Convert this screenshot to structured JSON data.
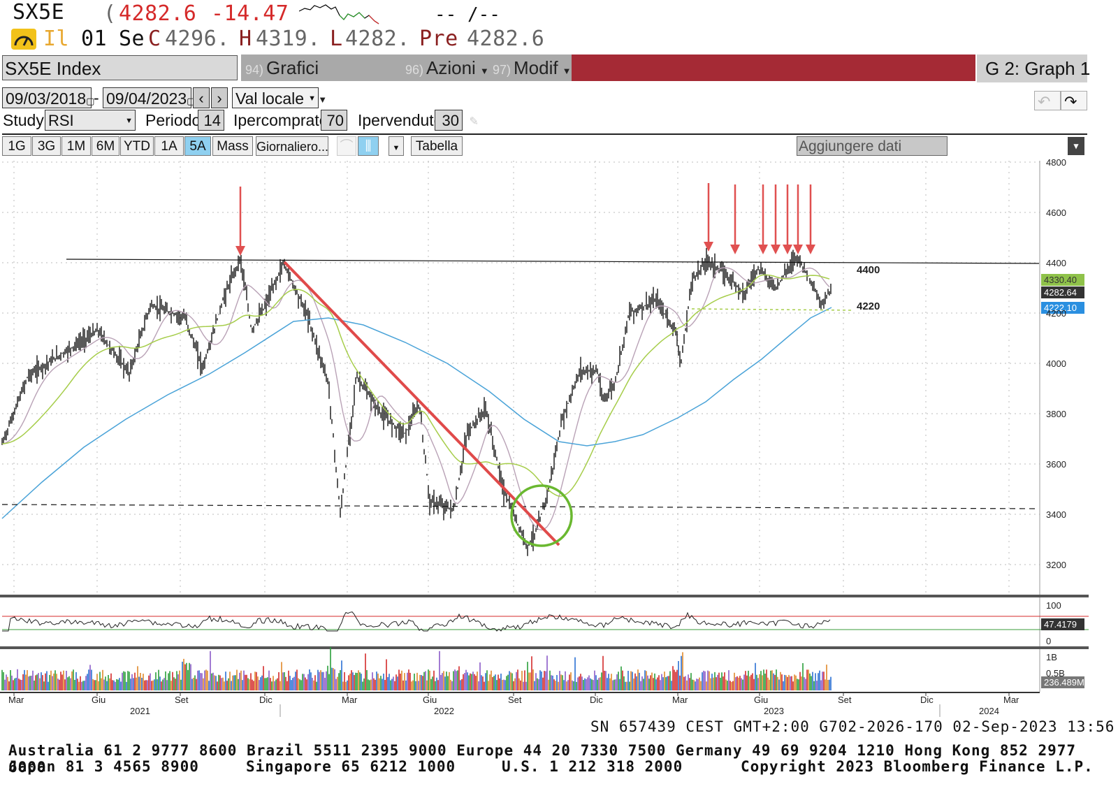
{
  "header": {
    "ticker": "SX5E",
    "last_paren": "(",
    "last_price": "4282.6",
    "change": "-14.47",
    "time_placeholder": "-- /--",
    "row2": {
      "indicator": "Il",
      "date_day": "01",
      "date_mon": "Se",
      "open_label": "C",
      "open_value": "4296.",
      "high_label": "H",
      "high_value": "4319.",
      "low_label": "L",
      "low_value": "4282.",
      "prev_label": "Pre",
      "prev_value": "4282.6"
    }
  },
  "toolbar": {
    "security": "SX5E Index",
    "suggested": {
      "num": "94)",
      "label": "Grafici suggeriti"
    },
    "actions": {
      "num": "96)",
      "label": "Azioni"
    },
    "modify": {
      "num": "97)",
      "label": "Modif"
    },
    "graph": "G 2: Graph 1"
  },
  "controls": {
    "start_date": "09/03/2018",
    "date_sep": "-",
    "end_date": "09/04/2023",
    "currency": "Val locale",
    "study_label": "Study",
    "study_value": "RSI",
    "period_label": "Periodo",
    "period_value": "14",
    "overbought_label": "Ipercomprato",
    "overbought_value": "70",
    "oversold_label": "Ipervenduto",
    "oversold_value": "30",
    "ranges": [
      "1G",
      "3G",
      "1M",
      "6M",
      "YTD",
      "1A",
      "5A",
      "Mass"
    ],
    "active_range": "5A",
    "frequency": "Giornaliero...",
    "table": "Tabella",
    "add_data": "Aggiungere dati"
  },
  "chart_data": {
    "type": "line",
    "yaxis_ticks": [
      "4800",
      "4600",
      "4400",
      "4200",
      "4000",
      "3800",
      "3600",
      "3400",
      "3200"
    ],
    "annotations": {
      "resistance": "4400",
      "support": "4220"
    },
    "badges": {
      "ma_green": "4330.40",
      "last": "4282.64",
      "ma_blue": "4222.10"
    },
    "rsi_ticks": [
      "100",
      "0"
    ],
    "rsi_value": "47.4179",
    "volume_ticks": [
      "1B",
      "0.5B"
    ],
    "volume_value": "236.489M",
    "x_months": [
      "Mar",
      "Giu",
      "Set",
      "Dic",
      "Mar",
      "Giu",
      "Set",
      "Dic",
      "Mar",
      "Giu",
      "Set",
      "Dic",
      "Mar"
    ],
    "x_years": [
      "2021",
      "2022",
      "2023",
      "2024"
    ],
    "colors": {
      "price": "#000000",
      "ma_fast": "#b9a2b6",
      "ma_green": "#a6cd4a",
      "ma_blue": "#4aa3d8",
      "trend": "#e04a4a",
      "circle": "#6ab830",
      "arrows": "#e05050"
    }
  },
  "status": {
    "line": "SN 657439 CEST GMT+2:00 G702-2026-170 02-Sep-2023 13:56"
  },
  "footer": {
    "line1": "Australia 61 2 9777 8600 Brazil 5511 2395 9000 Europe 44 20 7330 7500 Germany 49 69 9204 1210 Hong Kong 852 2977 6000",
    "line2a": "Japan 81 3 4565 8900",
    "line2b": "Singapore 65 6212 1000",
    "line2c": "U.S. 1 212 318 2000",
    "line2d": "Copyright 2023 Bloomberg Finance L.P."
  }
}
